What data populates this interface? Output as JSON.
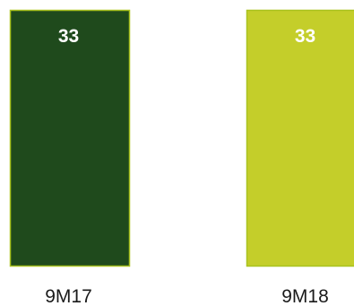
{
  "chart_data": {
    "type": "bar",
    "categories": [
      "9M17",
      "9M18"
    ],
    "values": [
      33,
      33
    ],
    "data_labels": [
      "33",
      "33"
    ],
    "colors": [
      "#1f4a1c",
      "#c4ce2a"
    ],
    "border_color": "#a9c21f",
    "title": "",
    "xlabel": "",
    "ylabel": "",
    "ylim": [
      0,
      33
    ],
    "grid": false,
    "legend": "none"
  }
}
